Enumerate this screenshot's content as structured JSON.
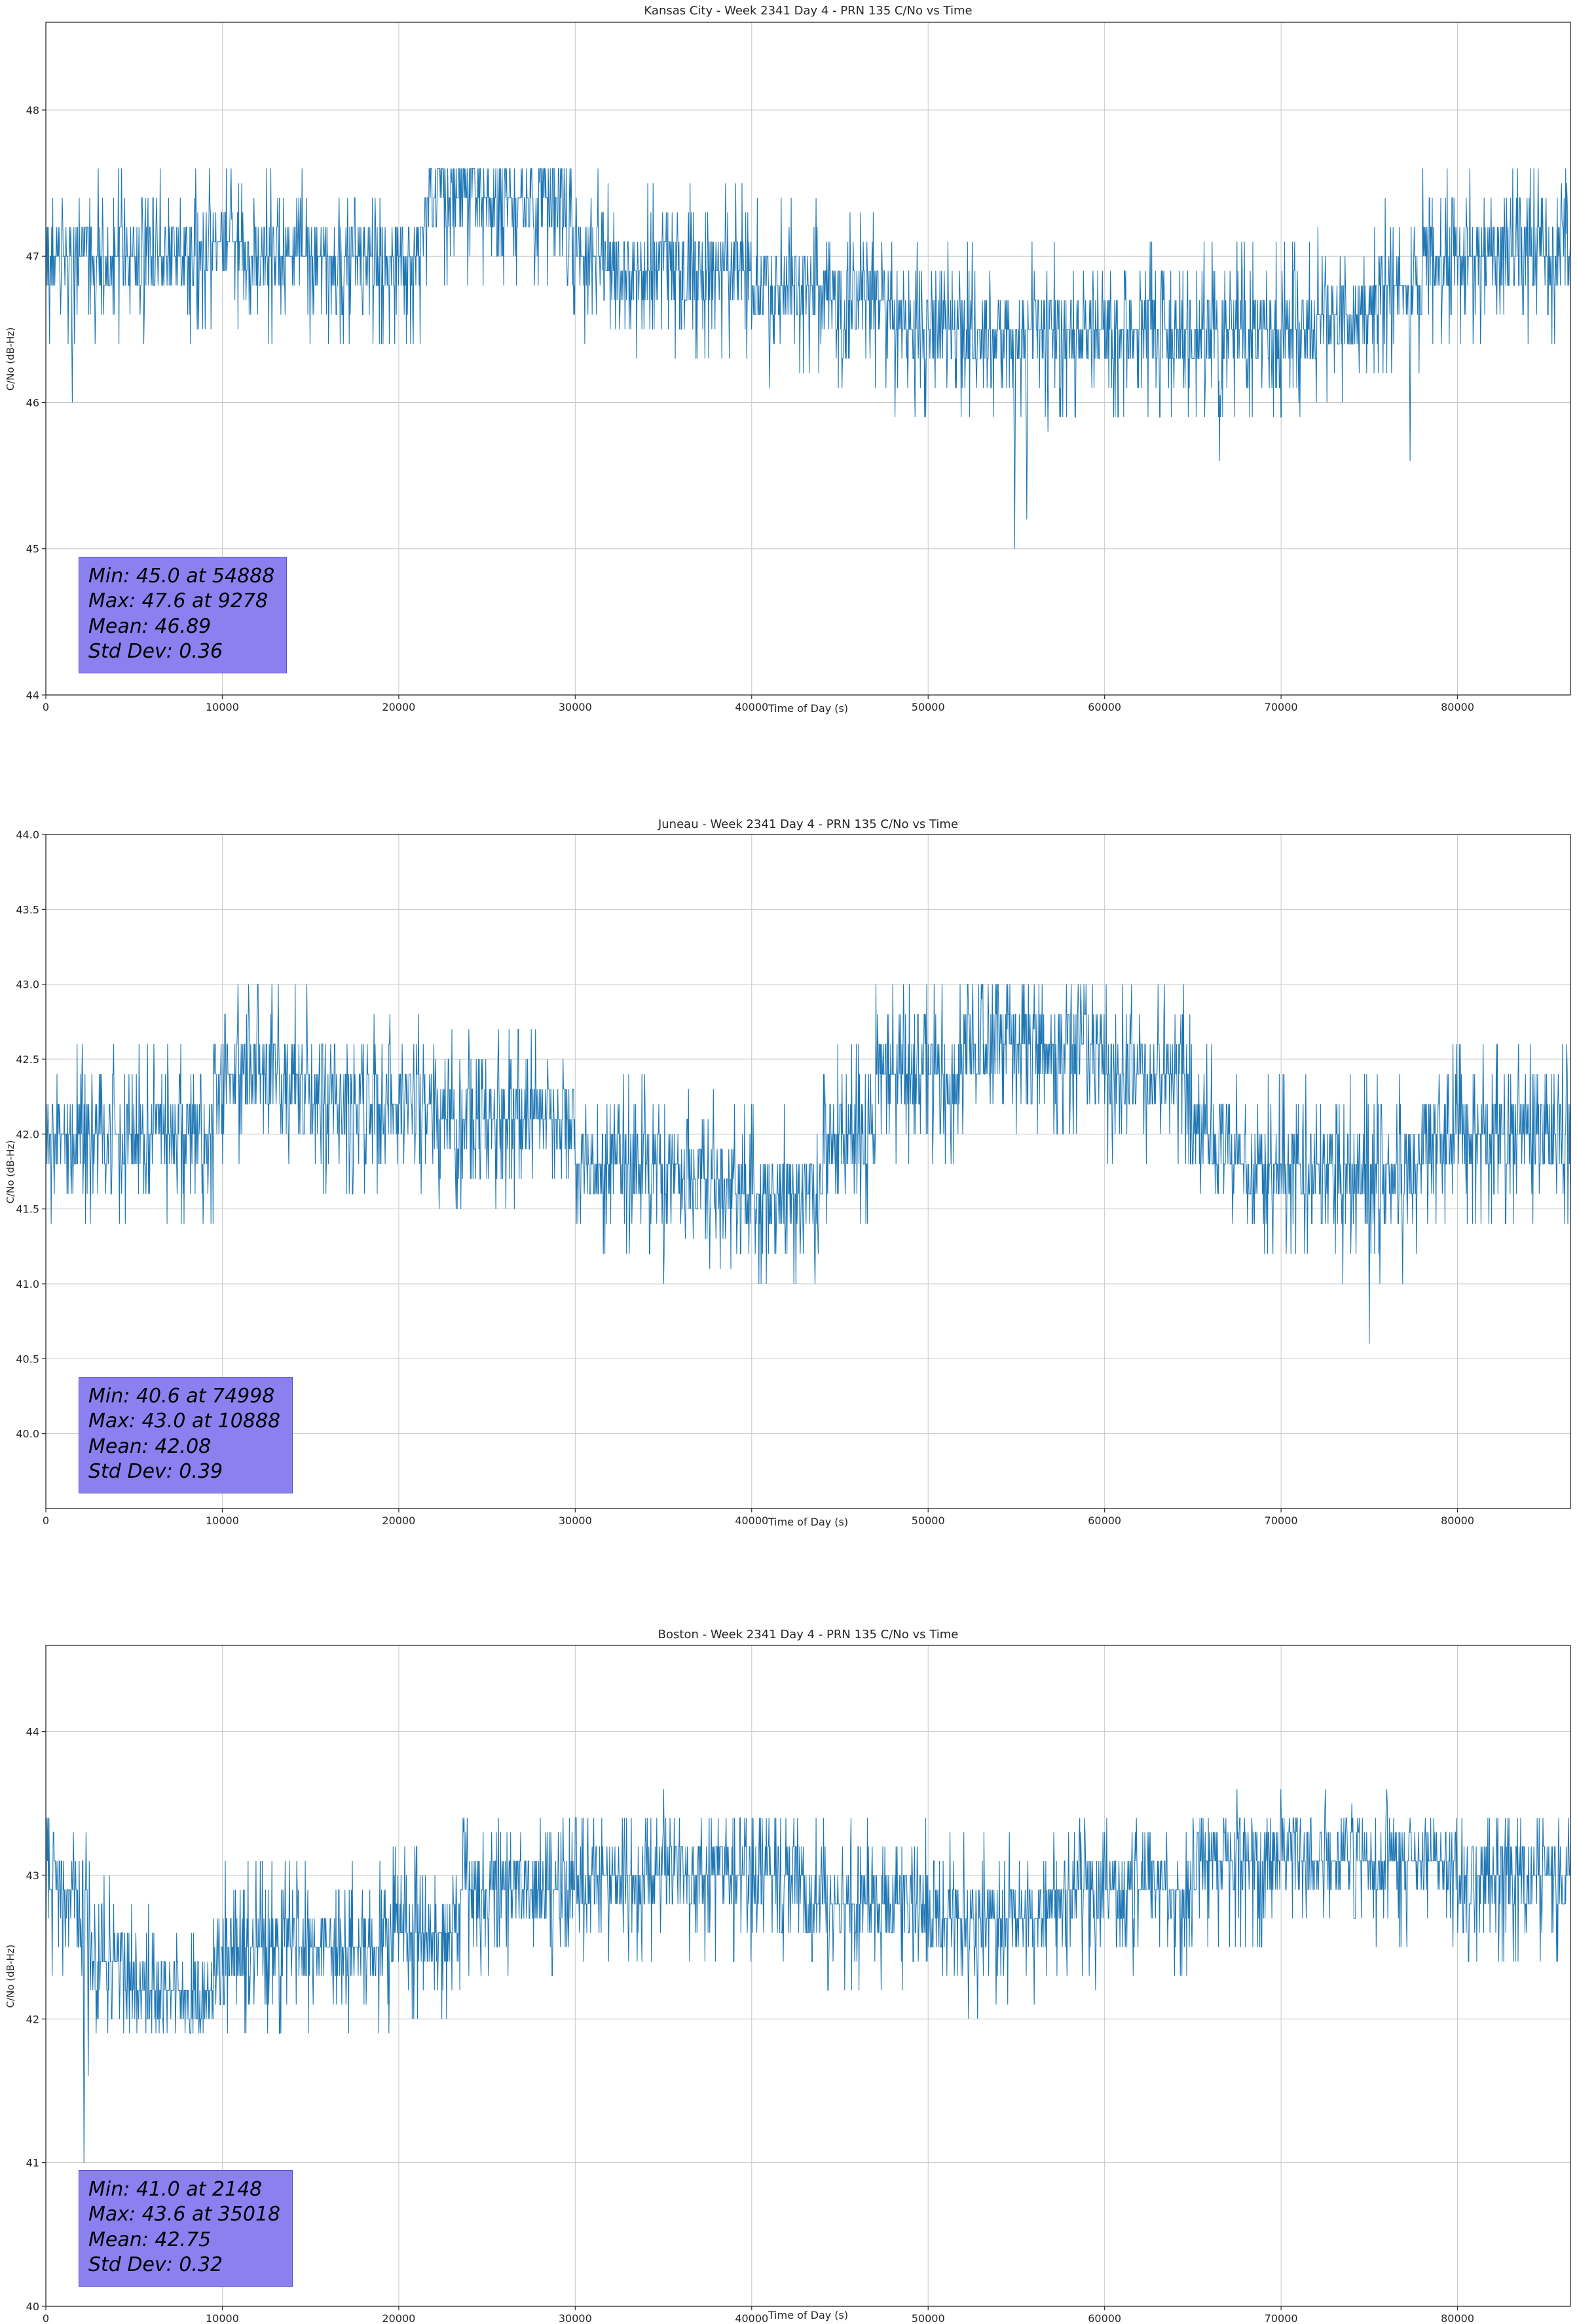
{
  "figure": {
    "background": "#ffffff",
    "line_color": "#1f77b4",
    "grid_color": "#c8c8c8",
    "spine_color": "#2a2a2a",
    "annotation_bg": "#8a80f0"
  },
  "chart_data": [
    {
      "type": "line",
      "title": "Kansas City - Week 2341 Day 4 - PRN 135 C/No vs Time",
      "xlabel": "Time of Day (s)",
      "ylabel": "C/No (dB-Hz)",
      "xlim": [
        0,
        86400
      ],
      "ylim": [
        44,
        48.6
      ],
      "xticks": [
        0,
        10000,
        20000,
        30000,
        40000,
        50000,
        60000,
        70000,
        80000
      ],
      "xtick_labels": [
        "0",
        "10000",
        "20000",
        "30000",
        "40000",
        "50000",
        "60000",
        "70000",
        "80000"
      ],
      "yticks": [
        44,
        45,
        46,
        47,
        48
      ],
      "ytick_labels": [
        "44",
        "45",
        "46",
        "47",
        "48"
      ],
      "grid": true,
      "legend": "none",
      "stats": {
        "min": 45.0,
        "min_t": 54888,
        "max": 47.6,
        "max_t": 9278,
        "mean": 46.89,
        "std": 0.36
      },
      "annotation_lines": [
        "Min: 45.0 at 54888",
        "Max: 47.6 at 9278",
        "Mean: 46.89",
        "Std Dev: 0.36"
      ],
      "quant_step": 0.2,
      "noise_clamp": [
        45.8,
        47.6
      ],
      "segments": [
        [
          0,
          47.0
        ],
        [
          8500,
          47.1
        ],
        [
          11500,
          47.0
        ],
        [
          21500,
          47.4
        ],
        [
          29500,
          47.0
        ],
        [
          31500,
          46.9
        ],
        [
          40000,
          46.8
        ],
        [
          44000,
          46.7
        ],
        [
          48000,
          46.5
        ],
        [
          63000,
          46.5
        ],
        [
          72000,
          46.6
        ],
        [
          75000,
          46.8
        ],
        [
          78000,
          47.0
        ],
        [
          86400,
          47.0
        ]
      ],
      "dips": [
        [
          1500,
          46.0
        ],
        [
          41000,
          46.1
        ],
        [
          54888,
          45.0
        ],
        [
          55600,
          45.2
        ],
        [
          56800,
          45.8
        ],
        [
          60500,
          45.9
        ],
        [
          66500,
          45.6
        ],
        [
          71000,
          46.0
        ],
        [
          77300,
          45.6
        ]
      ],
      "peaks": [
        [
          9278,
          47.6
        ],
        [
          10500,
          47.6
        ],
        [
          23000,
          47.6
        ],
        [
          26000,
          47.6
        ],
        [
          28000,
          47.6
        ],
        [
          85900,
          47.5
        ],
        [
          86200,
          47.5
        ]
      ]
    },
    {
      "type": "line",
      "title": "Juneau - Week 2341 Day 4 - PRN 135 C/No vs Time",
      "xlabel": "Time of Day (s)",
      "ylabel": "C/No (dB-Hz)",
      "xlim": [
        0,
        86400
      ],
      "ylim": [
        39.5,
        44.0
      ],
      "xticks": [
        0,
        10000,
        20000,
        30000,
        40000,
        50000,
        60000,
        70000,
        80000
      ],
      "xtick_labels": [
        "0",
        "10000",
        "20000",
        "30000",
        "40000",
        "50000",
        "60000",
        "70000",
        "80000"
      ],
      "yticks": [
        40.0,
        40.5,
        41.0,
        41.5,
        42.0,
        42.5,
        43.0,
        43.5,
        44.0
      ],
      "ytick_labels": [
        "40.0",
        "40.5",
        "41.0",
        "41.5",
        "42.0",
        "42.5",
        "43.0",
        "43.5",
        "44.0"
      ],
      "grid": true,
      "legend": "none",
      "stats": {
        "min": 40.6,
        "min_t": 74998,
        "max": 43.0,
        "max_t": 10888,
        "mean": 42.08,
        "std": 0.39
      },
      "annotation_lines": [
        "Min: 40.6 at 74998",
        "Max: 43.0 at 10888",
        "Mean: 42.08",
        "Std Dev: 0.39"
      ],
      "quant_step": 0.2,
      "noise_clamp": [
        41.0,
        43.0
      ],
      "segments": [
        [
          0,
          42.0
        ],
        [
          9500,
          42.4
        ],
        [
          15000,
          42.2
        ],
        [
          22000,
          42.1
        ],
        [
          30000,
          41.8
        ],
        [
          36000,
          41.7
        ],
        [
          39000,
          41.6
        ],
        [
          44000,
          42.0
        ],
        [
          47000,
          42.4
        ],
        [
          52000,
          42.6
        ],
        [
          60000,
          42.4
        ],
        [
          65000,
          42.0
        ],
        [
          67000,
          41.8
        ],
        [
          78000,
          42.0
        ],
        [
          86400,
          42.1
        ]
      ],
      "dips": [
        [
          35000,
          41.0
        ],
        [
          40200,
          41.2
        ],
        [
          43600,
          41.0
        ],
        [
          71500,
          41.2
        ],
        [
          73500,
          41.0
        ],
        [
          74998,
          40.6
        ],
        [
          75600,
          41.0
        ],
        [
          76900,
          41.0
        ]
      ],
      "peaks": [
        [
          10888,
          43.0
        ],
        [
          11500,
          43.0
        ],
        [
          12800,
          43.0
        ],
        [
          53000,
          43.0
        ],
        [
          54500,
          43.0
        ],
        [
          56000,
          43.0
        ],
        [
          58500,
          43.0
        ],
        [
          86200,
          42.6
        ]
      ]
    },
    {
      "type": "line",
      "title": "Boston - Week 2341 Day 4 - PRN 135 C/No vs Time",
      "xlabel": "Time of Day (s)",
      "ylabel": "C/No (dB-Hz)",
      "xlim": [
        0,
        86400
      ],
      "ylim": [
        40,
        44.6
      ],
      "xticks": [
        0,
        10000,
        20000,
        30000,
        40000,
        50000,
        60000,
        70000,
        80000
      ],
      "xtick_labels": [
        "0",
        "10000",
        "20000",
        "30000",
        "40000",
        "50000",
        "60000",
        "70000",
        "80000"
      ],
      "yticks": [
        40,
        41,
        42,
        43,
        44
      ],
      "ytick_labels": [
        "40",
        "41",
        "42",
        "43",
        "44"
      ],
      "grid": true,
      "legend": "none",
      "stats": {
        "min": 41.0,
        "min_t": 2148,
        "max": 43.6,
        "max_t": 35018,
        "mean": 42.75,
        "std": 0.32
      },
      "annotation_lines": [
        "Min: 41.0 at 2148",
        "Max: 43.6 at 35018",
        "Mean: 42.75",
        "Std Dev: 0.32"
      ],
      "quant_step": 0.2,
      "noise_clamp": [
        41.9,
        43.4
      ],
      "segments": [
        [
          0,
          42.9
        ],
        [
          2500,
          42.4
        ],
        [
          4500,
          42.2
        ],
        [
          9500,
          42.5
        ],
        [
          19500,
          42.6
        ],
        [
          23500,
          42.9
        ],
        [
          30000,
          43.0
        ],
        [
          43000,
          42.8
        ],
        [
          50000,
          42.7
        ],
        [
          57000,
          42.9
        ],
        [
          65000,
          43.1
        ],
        [
          80000,
          43.0
        ],
        [
          86400,
          43.0
        ]
      ],
      "dips": [
        [
          2148,
          41.0
        ],
        [
          2400,
          41.6
        ],
        [
          52300,
          42.0
        ],
        [
          52800,
          42.0
        ],
        [
          59500,
          42.2
        ]
      ],
      "peaks": [
        [
          34000,
          43.4
        ],
        [
          35018,
          43.6
        ],
        [
          67500,
          43.6
        ],
        [
          70000,
          43.6
        ],
        [
          72500,
          43.6
        ],
        [
          74000,
          43.5
        ],
        [
          76000,
          43.6
        ]
      ]
    }
  ]
}
